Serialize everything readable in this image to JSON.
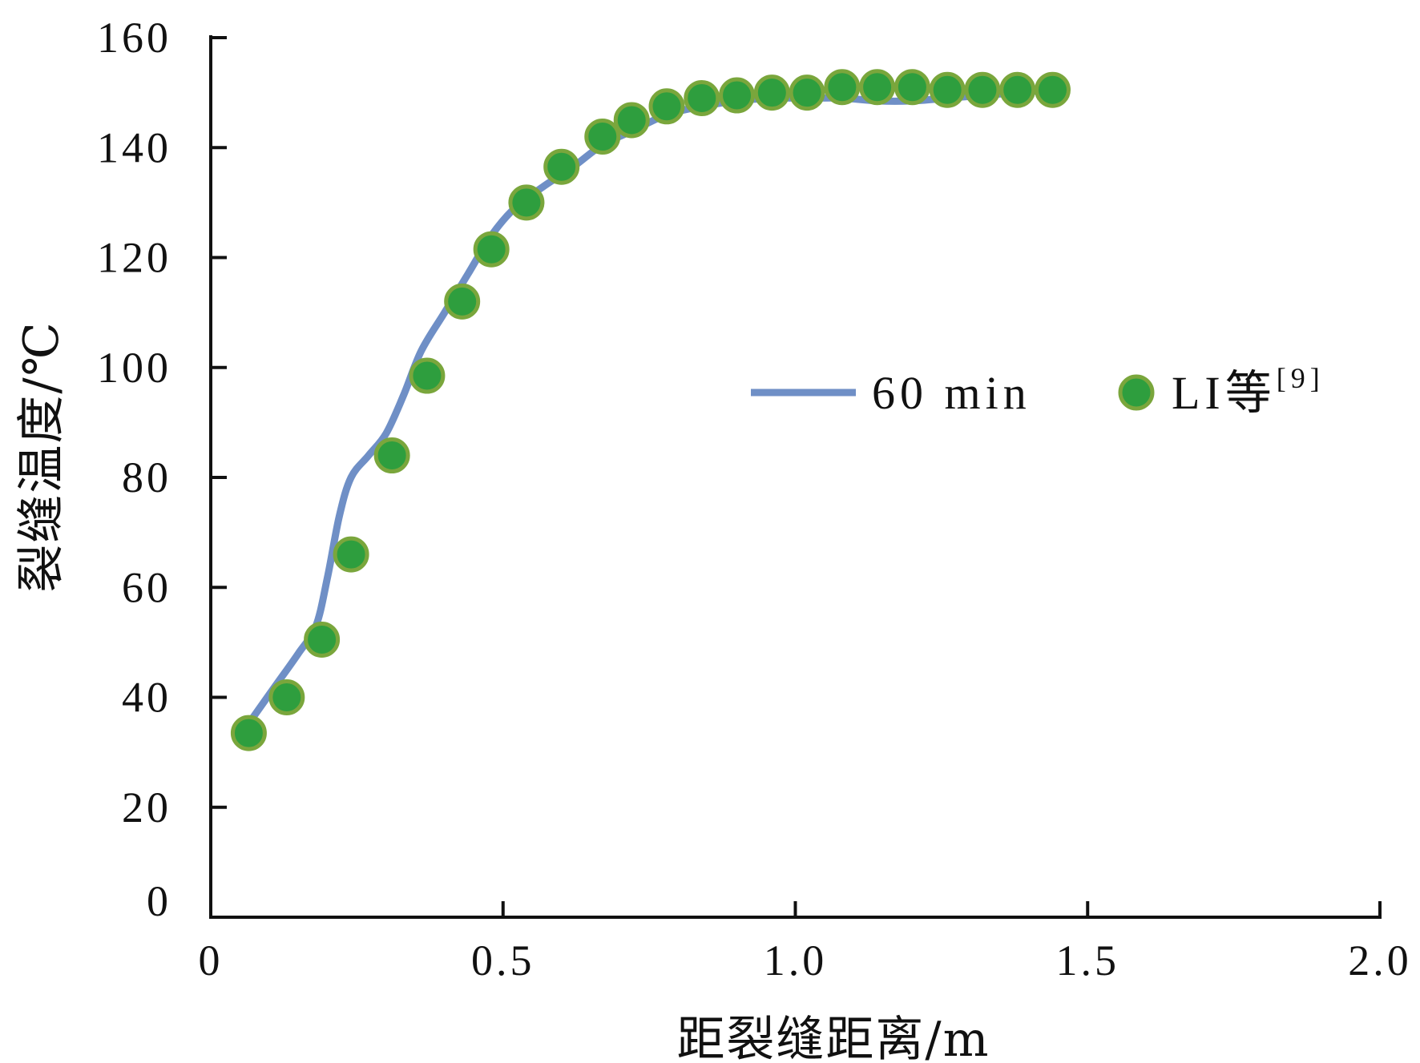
{
  "chart_data": {
    "type": "line",
    "xlabel": "距裂缝距离/m",
    "ylabel": "裂缝温度/℃",
    "xlim": [
      0,
      2.0
    ],
    "ylim": [
      0,
      160
    ],
    "x_ticks": [
      {
        "value": 0,
        "label": "0"
      },
      {
        "value": 0.5,
        "label": "0.5"
      },
      {
        "value": 1.0,
        "label": "1.0"
      },
      {
        "value": 1.5,
        "label": "1.5"
      },
      {
        "value": 2.0,
        "label": "2.0"
      }
    ],
    "y_ticks": [
      {
        "value": 0,
        "label": "0"
      },
      {
        "value": 20,
        "label": "20"
      },
      {
        "value": 40,
        "label": "40"
      },
      {
        "value": 60,
        "label": "60"
      },
      {
        "value": 80,
        "label": "80"
      },
      {
        "value": 100,
        "label": "100"
      },
      {
        "value": 120,
        "label": "120"
      },
      {
        "value": 140,
        "label": "140"
      },
      {
        "value": 160,
        "label": "160"
      }
    ],
    "grid": false,
    "legend_position": "right-middle",
    "series": [
      {
        "name": "60 min",
        "kind": "line",
        "color": "#6f8fc6",
        "x": [
          0.07,
          0.11,
          0.15,
          0.18,
          0.2,
          0.22,
          0.24,
          0.27,
          0.3,
          0.33,
          0.36,
          0.4,
          0.44,
          0.48,
          0.52,
          0.57,
          0.62,
          0.67,
          0.72,
          0.78,
          0.84,
          0.9,
          0.96,
          1.02,
          1.08,
          1.14,
          1.2,
          1.26,
          1.32,
          1.38,
          1.44
        ],
        "y": [
          36,
          42,
          48,
          53,
          62,
          73,
          80,
          84,
          88,
          95,
          103,
          110,
          117,
          124,
          129,
          133,
          136.5,
          140.5,
          143,
          146,
          147.5,
          148.5,
          149,
          149,
          149,
          148.5,
          148.5,
          149,
          149.5,
          150,
          150.5
        ]
      },
      {
        "name": "LI等",
        "name_sup": "[9]",
        "kind": "scatter",
        "color": "#2e9e3e",
        "edge_color": "#7aa63c",
        "x": [
          0.065,
          0.13,
          0.19,
          0.24,
          0.31,
          0.37,
          0.43,
          0.48,
          0.54,
          0.6,
          0.67,
          0.72,
          0.78,
          0.84,
          0.9,
          0.96,
          1.02,
          1.08,
          1.14,
          1.2,
          1.26,
          1.32,
          1.38,
          1.44
        ],
        "y": [
          33.5,
          40,
          50.5,
          66,
          84,
          98.5,
          112,
          121.5,
          130,
          136.5,
          142,
          145,
          147.5,
          149,
          149.5,
          150,
          150,
          151,
          151,
          151,
          150.5,
          150.5,
          150.5,
          150.5
        ]
      }
    ]
  }
}
